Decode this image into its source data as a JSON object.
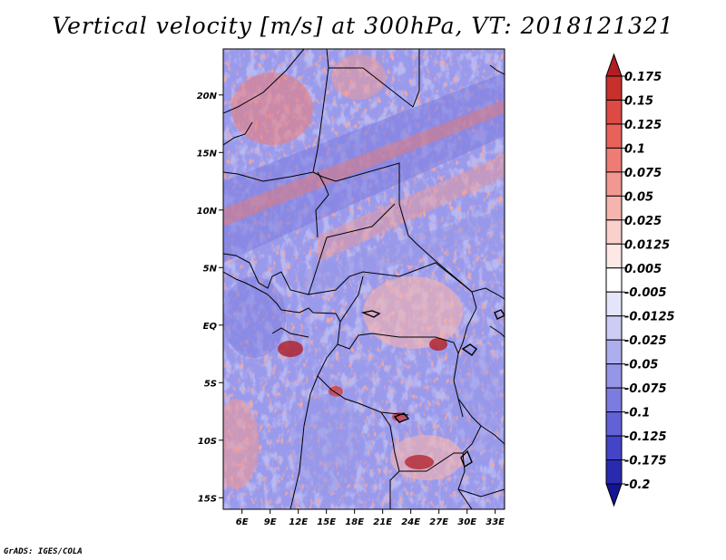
{
  "title": "Vertical velocity [m/s] at 300hPa, VT: 2018121321",
  "footer": "GrADS: IGES/COLA",
  "map": {
    "lat_ticks": [
      {
        "value": 20,
        "label": "20N"
      },
      {
        "value": 15,
        "label": "15N"
      },
      {
        "value": 10,
        "label": "10N"
      },
      {
        "value": 5,
        "label": "5N"
      },
      {
        "value": 0,
        "label": "EQ"
      },
      {
        "value": -5,
        "label": "5S"
      },
      {
        "value": -10,
        "label": "10S"
      },
      {
        "value": -15,
        "label": "15S"
      }
    ],
    "lon_ticks": [
      {
        "value": 6,
        "label": "6E"
      },
      {
        "value": 9,
        "label": "9E"
      },
      {
        "value": 12,
        "label": "12E"
      },
      {
        "value": 15,
        "label": "15E"
      },
      {
        "value": 18,
        "label": "18E"
      },
      {
        "value": 21,
        "label": "21E"
      },
      {
        "value": 24,
        "label": "24E"
      },
      {
        "value": 27,
        "label": "27E"
      },
      {
        "value": 30,
        "label": "30E"
      },
      {
        "value": 33,
        "label": "33E"
      }
    ],
    "lon_range": [
      4,
      34
    ],
    "lat_range": [
      -16,
      24
    ]
  },
  "colorbar": {
    "levels": [
      "0.175",
      "0.15",
      "0.125",
      "0.1",
      "0.075",
      "0.05",
      "0.025",
      "0.0125",
      "0.005",
      "-0.005",
      "-0.0125",
      "-0.025",
      "-0.05",
      "-0.075",
      "-0.1",
      "-0.125",
      "-0.175",
      "-0.2"
    ],
    "colors": [
      "#b01e24",
      "#c8302c",
      "#dc4a44",
      "#e8625a",
      "#ee7c74",
      "#f29890",
      "#f6b4ae",
      "#fad0cc",
      "#fde8e6",
      "#ffffff",
      "#e4e4fa",
      "#ccccf4",
      "#aeaeee",
      "#9696e8",
      "#7c7ce0",
      "#6262d6",
      "#4444c8",
      "#2a2ab0",
      "#141494"
    ]
  }
}
